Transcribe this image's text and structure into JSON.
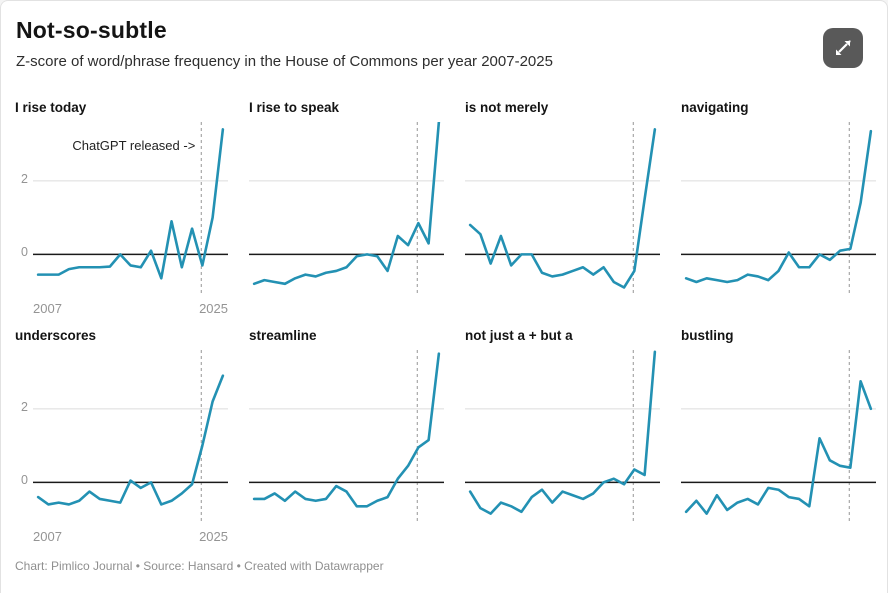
{
  "header": {
    "title": "Not-so-subtle",
    "subtitle": "Z-score of word/phrase frequency in the House of Commons per year 2007-2025"
  },
  "expand_button": {
    "icon": "expand-arrows-icon"
  },
  "footer": {
    "text": "Chart: Pimlico Journal • Source: Hansard • Created with Datawrapper"
  },
  "colors": {
    "line": "#2391b3",
    "zero_line": "#1a1a1a",
    "gridline": "#dcdcdc",
    "dashed_line": "#a6a6a6",
    "tick_label": "#949494",
    "annotation": "#222222",
    "expand_bg": "#595959"
  },
  "chart_data": {
    "type": "line",
    "x": [
      2007,
      2008,
      2009,
      2010,
      2011,
      2012,
      2013,
      2014,
      2015,
      2016,
      2017,
      2018,
      2019,
      2020,
      2021,
      2022,
      2023,
      2024,
      2025
    ],
    "xlim": [
      2006.5,
      2025.5
    ],
    "ylim": [
      -1.05,
      3.6
    ],
    "x_tick_labels": [
      "2007",
      "2025"
    ],
    "y_tick_labels": [
      "2",
      "0"
    ],
    "y_gridline_value": 2,
    "zero_line_value": 0,
    "dashed_line_x": 2022.9,
    "grid": "horizontal-only",
    "legend": "none",
    "annotation": {
      "text": "ChatGPT released ->",
      "panel_index": 0
    },
    "panels": [
      {
        "title": "I rise today",
        "values": [
          -0.55,
          -0.55,
          -0.55,
          -0.4,
          -0.35,
          -0.35,
          -0.35,
          -0.33,
          0.0,
          -0.3,
          -0.35,
          0.1,
          -0.65,
          0.9,
          -0.35,
          0.7,
          -0.3,
          1.0,
          3.4
        ]
      },
      {
        "title": "I rise to speak",
        "values": [
          -0.8,
          -0.7,
          -0.75,
          -0.8,
          -0.65,
          -0.55,
          -0.6,
          -0.5,
          -0.45,
          -0.35,
          -0.05,
          0.0,
          -0.05,
          -0.45,
          0.5,
          0.25,
          0.85,
          0.3,
          3.6
        ]
      },
      {
        "title": "is not merely",
        "values": [
          0.8,
          0.55,
          -0.25,
          0.5,
          -0.3,
          0.0,
          0.0,
          -0.5,
          -0.6,
          -0.55,
          -0.45,
          -0.35,
          -0.55,
          -0.35,
          -0.75,
          -0.9,
          -0.45,
          1.5,
          3.4
        ]
      },
      {
        "title": "navigating",
        "values": [
          -0.65,
          -0.75,
          -0.65,
          -0.7,
          -0.75,
          -0.7,
          -0.55,
          -0.6,
          -0.7,
          -0.45,
          0.05,
          -0.35,
          -0.35,
          0.0,
          -0.15,
          0.1,
          0.15,
          1.4,
          3.35
        ]
      },
      {
        "title": "underscores",
        "values": [
          -0.4,
          -0.6,
          -0.55,
          -0.6,
          -0.5,
          -0.25,
          -0.45,
          -0.5,
          -0.55,
          0.05,
          -0.15,
          0.0,
          -0.6,
          -0.5,
          -0.3,
          -0.05,
          1.0,
          2.2,
          2.9
        ]
      },
      {
        "title": "streamline",
        "values": [
          -0.45,
          -0.45,
          -0.3,
          -0.5,
          -0.25,
          -0.45,
          -0.5,
          -0.45,
          -0.1,
          -0.25,
          -0.65,
          -0.65,
          -0.5,
          -0.4,
          0.1,
          0.45,
          0.95,
          1.15,
          3.5
        ]
      },
      {
        "title": "not just a + but a",
        "values": [
          -0.25,
          -0.7,
          -0.85,
          -0.55,
          -0.65,
          -0.8,
          -0.4,
          -0.2,
          -0.55,
          -0.25,
          -0.35,
          -0.45,
          -0.3,
          0.0,
          0.1,
          -0.05,
          0.35,
          0.2,
          3.55
        ]
      },
      {
        "title": "bustling",
        "values": [
          -0.8,
          -0.5,
          -0.85,
          -0.35,
          -0.75,
          -0.55,
          -0.45,
          -0.6,
          -0.15,
          -0.2,
          -0.4,
          -0.45,
          -0.65,
          1.2,
          0.6,
          0.45,
          0.4,
          2.75,
          2.0
        ]
      }
    ]
  }
}
